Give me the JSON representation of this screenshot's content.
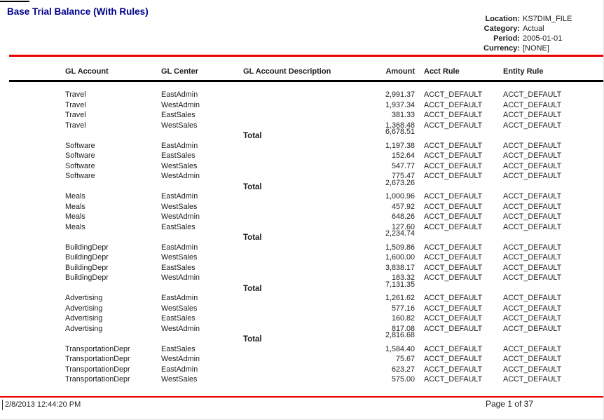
{
  "report": {
    "title": "Base Trial Balance (With Rules)"
  },
  "meta": [
    {
      "label": "Location:",
      "value": "KS7DIM_FILE"
    },
    {
      "label": "Category:",
      "value": "Actual"
    },
    {
      "label": "Period:",
      "value": "2005-01-01"
    },
    {
      "label": "Currency:",
      "value": "[NONE]"
    }
  ],
  "columns": [
    "GL Account",
    "GL Center",
    "GL Account Description",
    "Amount",
    "Acct Rule",
    "Entity Rule"
  ],
  "table": {
    "groups": [
      {
        "rows": [
          {
            "account": "Travel",
            "center": "EastAdmin",
            "description": "",
            "amount": "2,991.37",
            "acct_rule": "ACCT_DEFAULT",
            "entity_rule": "ACCT_DEFAULT"
          },
          {
            "account": "Travel",
            "center": "WestAdmin",
            "description": "",
            "amount": "1,937.34",
            "acct_rule": "ACCT_DEFAULT",
            "entity_rule": "ACCT_DEFAULT"
          },
          {
            "account": "Travel",
            "center": "EastSales",
            "description": "",
            "amount": "381.33",
            "acct_rule": "ACCT_DEFAULT",
            "entity_rule": "ACCT_DEFAULT"
          },
          {
            "account": "Travel",
            "center": "WestSales",
            "description": "",
            "amount": "1,368.48",
            "acct_rule": "ACCT_DEFAULT",
            "entity_rule": "ACCT_DEFAULT"
          }
        ],
        "total_label": "Total",
        "total_amount": "6,678.51"
      },
      {
        "rows": [
          {
            "account": "Software",
            "center": "EastAdmin",
            "description": "",
            "amount": "1,197.38",
            "acct_rule": "ACCT_DEFAULT",
            "entity_rule": "ACCT_DEFAULT"
          },
          {
            "account": "Software",
            "center": "EastSales",
            "description": "",
            "amount": "152.64",
            "acct_rule": "ACCT_DEFAULT",
            "entity_rule": "ACCT_DEFAULT"
          },
          {
            "account": "Software",
            "center": "WestSales",
            "description": "",
            "amount": "547.77",
            "acct_rule": "ACCT_DEFAULT",
            "entity_rule": "ACCT_DEFAULT"
          },
          {
            "account": "Software",
            "center": "WestAdmin",
            "description": "",
            "amount": "775.47",
            "acct_rule": "ACCT_DEFAULT",
            "entity_rule": "ACCT_DEFAULT"
          }
        ],
        "total_label": "Total",
        "total_amount": "2,673.26"
      },
      {
        "rows": [
          {
            "account": "Meals",
            "center": "EastAdmin",
            "description": "",
            "amount": "1,000.96",
            "acct_rule": "ACCT_DEFAULT",
            "entity_rule": "ACCT_DEFAULT"
          },
          {
            "account": "Meals",
            "center": "WestSales",
            "description": "",
            "amount": "457.92",
            "acct_rule": "ACCT_DEFAULT",
            "entity_rule": "ACCT_DEFAULT"
          },
          {
            "account": "Meals",
            "center": "WestAdmin",
            "description": "",
            "amount": "648.26",
            "acct_rule": "ACCT_DEFAULT",
            "entity_rule": "ACCT_DEFAULT"
          },
          {
            "account": "Meals",
            "center": "EastSales",
            "description": "",
            "amount": "127.60",
            "acct_rule": "ACCT_DEFAULT",
            "entity_rule": "ACCT_DEFAULT"
          }
        ],
        "total_label": "Total",
        "total_amount": "2,234.74"
      },
      {
        "rows": [
          {
            "account": "BuildingDepr",
            "center": "EastAdmin",
            "description": "",
            "amount": "1,509.86",
            "acct_rule": "ACCT_DEFAULT",
            "entity_rule": "ACCT_DEFAULT"
          },
          {
            "account": "BuildingDepr",
            "center": "WestSales",
            "description": "",
            "amount": "1,600.00",
            "acct_rule": "ACCT_DEFAULT",
            "entity_rule": "ACCT_DEFAULT"
          },
          {
            "account": "BuildingDepr",
            "center": "EastSales",
            "description": "",
            "amount": "3,838.17",
            "acct_rule": "ACCT_DEFAULT",
            "entity_rule": "ACCT_DEFAULT"
          },
          {
            "account": "BuildingDepr",
            "center": "WestAdmin",
            "description": "",
            "amount": "183.32",
            "acct_rule": "ACCT_DEFAULT",
            "entity_rule": "ACCT_DEFAULT"
          }
        ],
        "total_label": "Total",
        "total_amount": "7,131.35"
      },
      {
        "rows": [
          {
            "account": "Advertising",
            "center": "EastAdmin",
            "description": "",
            "amount": "1,261.62",
            "acct_rule": "ACCT_DEFAULT",
            "entity_rule": "ACCT_DEFAULT"
          },
          {
            "account": "Advertising",
            "center": "WestSales",
            "description": "",
            "amount": "577.16",
            "acct_rule": "ACCT_DEFAULT",
            "entity_rule": "ACCT_DEFAULT"
          },
          {
            "account": "Advertising",
            "center": "EastSales",
            "description": "",
            "amount": "160.82",
            "acct_rule": "ACCT_DEFAULT",
            "entity_rule": "ACCT_DEFAULT"
          },
          {
            "account": "Advertising",
            "center": "WestAdmin",
            "description": "",
            "amount": "817.08",
            "acct_rule": "ACCT_DEFAULT",
            "entity_rule": "ACCT_DEFAULT"
          }
        ],
        "total_label": "Total",
        "total_amount": "2,816.68"
      },
      {
        "rows": [
          {
            "account": "TransportationDepr",
            "center": "EastSales",
            "description": "",
            "amount": "1,584.40",
            "acct_rule": "ACCT_DEFAULT",
            "entity_rule": "ACCT_DEFAULT"
          },
          {
            "account": "TransportationDepr",
            "center": "WestAdmin",
            "description": "",
            "amount": "75.67",
            "acct_rule": "ACCT_DEFAULT",
            "entity_rule": "ACCT_DEFAULT"
          },
          {
            "account": "TransportationDepr",
            "center": "EastAdmin",
            "description": "",
            "amount": "623.27",
            "acct_rule": "ACCT_DEFAULT",
            "entity_rule": "ACCT_DEFAULT"
          },
          {
            "account": "TransportationDepr",
            "center": "WestSales",
            "description": "",
            "amount": "575.00",
            "acct_rule": "ACCT_DEFAULT",
            "entity_rule": "ACCT_DEFAULT"
          }
        ],
        "total_label": null,
        "total_amount": null
      }
    ]
  },
  "footer": {
    "generated": "2/8/2013 12:44:20 PM",
    "page_number": "Page 1 of 37"
  },
  "colors": {
    "title_navy": "#00008b",
    "rule_red": "#ee0000",
    "rule_black": "#000000"
  }
}
